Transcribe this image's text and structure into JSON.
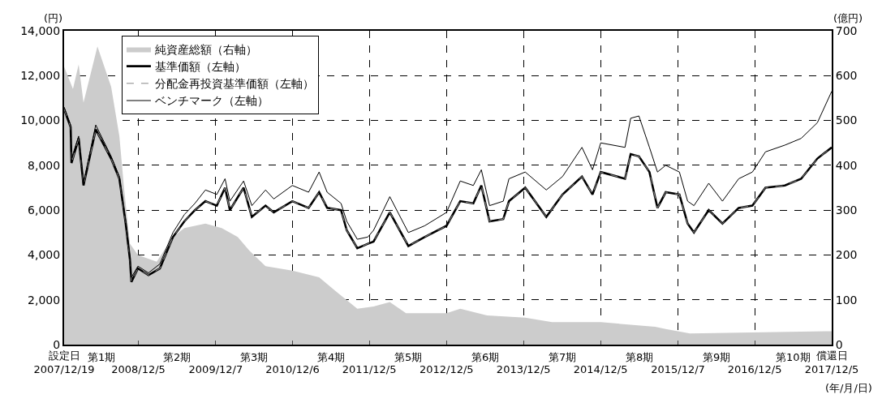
{
  "chart_data": {
    "type": "line",
    "ylabel": "(円)",
    "y2label": "(億円)",
    "xlabel": "(年/月/日)",
    "annotations": [
      "第1期",
      "第2期",
      "第3期",
      "第4期",
      "第5期",
      "第6期",
      "第7期",
      "第8期",
      "第9期",
      "第10期"
    ],
    "x": [
      "2007-12-19",
      "2008-01-19",
      "2008-01-23",
      "2008-02-26",
      "2008-03-20",
      "2008-05-17",
      "2008-07-29",
      "2008-09-06",
      "2008-10-06",
      "2008-10-26",
      "2008-11-02",
      "2008-12-03",
      "2009-01-22",
      "2009-03-17",
      "2009-05-18",
      "2009-07-11",
      "2009-08-30",
      "2009-10-19",
      "2009-12-12",
      "2010-01-20",
      "2010-02-12",
      "2010-04-18",
      "2010-05-27",
      "2010-07-31",
      "2010-09-08",
      "2010-12-05",
      "2011-02-20",
      "2011-04-11",
      "2011-05-19",
      "2011-07-24",
      "2011-08-20",
      "2011-10-09",
      "2011-11-28",
      "2011-12-25",
      "2012-03-11",
      "2012-06-07",
      "2012-08-23",
      "2012-12-05",
      "2013-02-08",
      "2013-04-11",
      "2013-05-19",
      "2013-06-27",
      "2013-08-31",
      "2013-09-27",
      "2013-12-13",
      "2014-03-23",
      "2014-06-08",
      "2014-09-08",
      "2014-10-28",
      "2014-12-06",
      "2015-03-31",
      "2015-04-27",
      "2015-06-05",
      "2015-07-25",
      "2015-09-01",
      "2015-10-10",
      "2015-12-14",
      "2016-01-22",
      "2016-02-21",
      "2016-05-01",
      "2016-07-05",
      "2016-09-20",
      "2016-11-24",
      "2017-01-25",
      "2017-04-27",
      "2017-07-13",
      "2017-09-28",
      "2017-12-05"
    ],
    "series": [
      {
        "name": "純資産総額（右軸）",
        "type": "area",
        "axis": "y2",
        "color": "#cccccc",
        "x": [
          "2007-12-19",
          "2008-01-30",
          "2008-02-26",
          "2008-03-20",
          "2008-05-25",
          "2008-07-29",
          "2008-09-06",
          "2008-09-29",
          "2008-10-26",
          "2008-12-03",
          "2009-03-02",
          "2009-05-18",
          "2009-07-11",
          "2009-10-19",
          "2010-01-04",
          "2010-03-21",
          "2010-05-15",
          "2010-07-31",
          "2010-12-05",
          "2011-04-11",
          "2011-06-27",
          "2011-10-09",
          "2011-12-25",
          "2012-03-11",
          "2012-05-27",
          "2012-12-05",
          "2013-02-08",
          "2013-06-15",
          "2013-12-13",
          "2014-04-19",
          "2014-12-06",
          "2015-08-21",
          "2015-10-10",
          "2016-02-02",
          "2017-12-05"
        ],
        "values": [
          620,
          570,
          625,
          540,
          665,
          575,
          465,
          345,
          225,
          200,
          185,
          240,
          260,
          270,
          260,
          240,
          210,
          175,
          165,
          150,
          120,
          80,
          85,
          95,
          70,
          70,
          80,
          65,
          60,
          50,
          50,
          40,
          35,
          25,
          30
        ]
      },
      {
        "name": "基準価額（左軸）",
        "color": "#000000",
        "line_style": "solid",
        "values": [
          10500,
          9700,
          8100,
          9200,
          7100,
          9600,
          8300,
          7400,
          5400,
          3800,
          2800,
          3400,
          3100,
          3400,
          4800,
          5500,
          6000,
          6400,
          6200,
          7000,
          6000,
          7000,
          5700,
          6200,
          5900,
          6400,
          6100,
          6800,
          6100,
          6000,
          5100,
          4300,
          4500,
          4600,
          5900,
          4400,
          4800,
          5300,
          6400,
          6300,
          7100,
          5500,
          5600,
          6400,
          7000,
          5700,
          6700,
          7500,
          6700,
          7700,
          7400,
          8500,
          8400,
          7700,
          6100,
          6800,
          6700,
          5400,
          5000,
          6000,
          5400,
          6100,
          6200,
          7000,
          7100,
          7400,
          8300,
          8800
        ]
      },
      {
        "name": "分配金再投資基準価額（左軸）",
        "color": "#888888",
        "line_style": "dashed",
        "values": [
          10500,
          9700,
          8100,
          9200,
          7100,
          9600,
          8300,
          7400,
          5400,
          3800,
          2800,
          3400,
          3100,
          3400,
          4800,
          5500,
          6000,
          6400,
          6200,
          7000,
          6000,
          7000,
          5700,
          6200,
          5900,
          6400,
          6100,
          6800,
          6100,
          6000,
          5100,
          4300,
          4500,
          4600,
          5900,
          4400,
          4800,
          5300,
          6400,
          6300,
          7100,
          5500,
          5600,
          6400,
          7000,
          5700,
          6700,
          7500,
          6700,
          7700,
          7400,
          8500,
          8400,
          7700,
          6100,
          6800,
          6700,
          5400,
          5000,
          6000,
          5400,
          6100,
          6200,
          7000,
          7100,
          7400,
          8300,
          8800
        ]
      },
      {
        "name": "ベンチマーク（左軸）",
        "color": "#000000",
        "line_style": "solid",
        "values": [
          10600,
          9800,
          8300,
          9300,
          7200,
          9800,
          8400,
          7500,
          5500,
          3900,
          3000,
          3500,
          3200,
          3600,
          5000,
          5800,
          6300,
          6900,
          6700,
          7400,
          6400,
          7300,
          6200,
          6900,
          6500,
          7100,
          6800,
          7700,
          6800,
          6300,
          5500,
          4700,
          4800,
          5100,
          6600,
          5000,
          5300,
          5900,
          7300,
          7100,
          7800,
          6200,
          6400,
          7400,
          7700,
          6900,
          7500,
          8800,
          7800,
          9000,
          8800,
          10100,
          10200,
          8800,
          7700,
          8000,
          7700,
          6400,
          6200,
          7200,
          6400,
          7400,
          7700,
          8600,
          8900,
          9200,
          9900,
          11300
        ]
      }
    ],
    "xlim": [
      "2007-12-19",
      "2017-12-05"
    ],
    "xticks": [
      {
        "value": "2007-12-19",
        "label": "設定日\n2007/12/19"
      },
      {
        "value": "2008-12-05",
        "label": "2008/12/5"
      },
      {
        "value": "2009-12-07",
        "label": "2009/12/7"
      },
      {
        "value": "2010-12-06",
        "label": "2010/12/6"
      },
      {
        "value": "2011-12-05",
        "label": "2011/12/5"
      },
      {
        "value": "2012-12-05",
        "label": "2012/12/5"
      },
      {
        "value": "2013-12-05",
        "label": "2013/12/5"
      },
      {
        "value": "2014-12-05",
        "label": "2014/12/5"
      },
      {
        "value": "2015-12-07",
        "label": "2015/12/7"
      },
      {
        "value": "2016-12-05",
        "label": "2016/12/5"
      },
      {
        "value": "2017-12-05",
        "label": "償還日\n2017/12/5"
      }
    ],
    "ylim": [
      0,
      14000
    ],
    "yticks": [
      0,
      {
        "value": 2000,
        "label": "2,000"
      },
      {
        "value": 4000,
        "label": "4,000"
      },
      {
        "value": 6000,
        "label": "6,000"
      },
      {
        "value": 8000,
        "label": "8,000"
      },
      {
        "value": 10000,
        "label": "10,000"
      },
      {
        "value": 12000,
        "label": "12,000"
      },
      {
        "value": 14000,
        "label": "14,000"
      }
    ],
    "y2lim": [
      0,
      700
    ],
    "y2ticks": [
      0,
      100,
      200,
      300,
      400,
      500,
      600,
      700
    ],
    "grid": true,
    "legend": "top left"
  }
}
